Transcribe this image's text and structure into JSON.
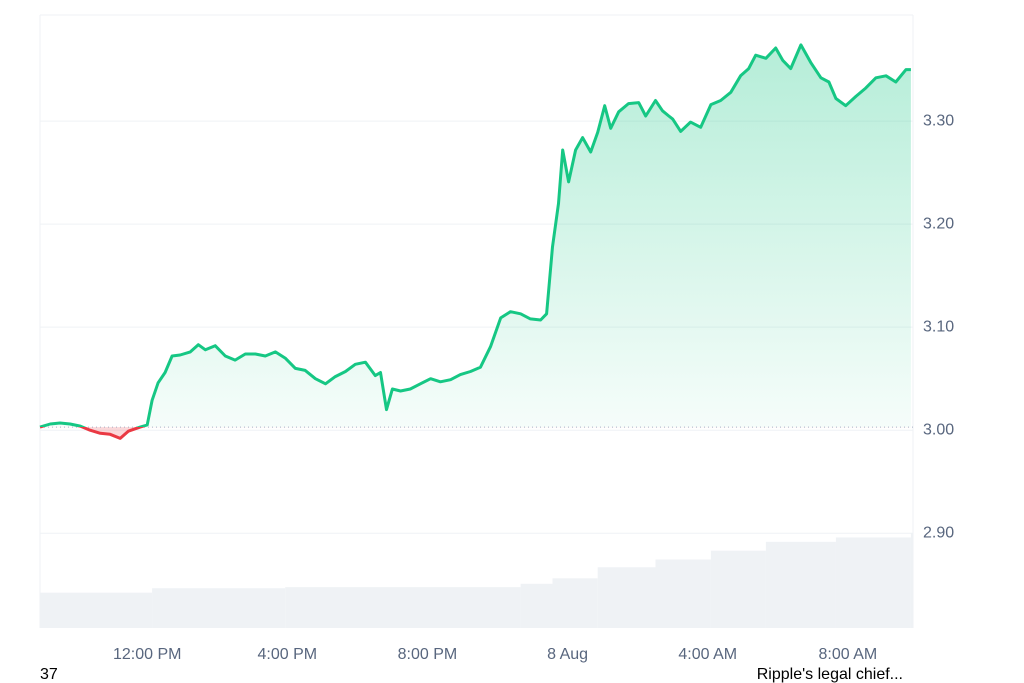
{
  "chart_data": {
    "type": "line",
    "x": [
      8.94,
      9.23,
      9.51,
      9.8,
      10.09,
      10.37,
      10.66,
      10.94,
      11.23,
      11.46,
      11.8,
      12.0,
      12.14,
      12.31,
      12.51,
      12.71,
      12.94,
      13.23,
      13.46,
      13.66,
      13.94,
      14.23,
      14.51,
      14.8,
      15.09,
      15.37,
      15.66,
      15.94,
      16.23,
      16.51,
      16.8,
      17.09,
      17.37,
      17.66,
      17.94,
      18.23,
      18.51,
      18.66,
      18.83,
      19.0,
      19.23,
      19.51,
      19.8,
      20.09,
      20.37,
      20.66,
      20.94,
      21.23,
      21.51,
      21.8,
      22.09,
      22.37,
      22.66,
      22.94,
      23.23,
      23.4,
      23.57,
      23.74,
      23.86,
      24.03,
      24.23,
      24.43,
      24.66,
      24.86,
      25.06,
      25.23,
      25.46,
      25.74,
      26.03,
      26.23,
      26.51,
      26.71,
      26.89,
      27.0,
      27.23,
      27.51,
      27.8,
      28.09,
      28.37,
      28.66,
      28.94,
      29.17,
      29.37,
      29.66,
      29.94,
      30.14,
      30.37,
      30.66,
      30.94,
      31.23,
      31.46,
      31.66,
      31.94,
      32.23,
      32.51,
      32.8,
      33.09,
      33.37,
      33.66,
      33.8
    ],
    "series": [
      {
        "color": "#16c784",
        "color_below": "#ea3943",
        "values": [
          3.003,
          3.006,
          3.007,
          3.006,
          3.004,
          3.0,
          2.997,
          2.996,
          2.992,
          2.999,
          3.003,
          3.005,
          3.029,
          3.046,
          3.056,
          3.072,
          3.073,
          3.076,
          3.083,
          3.078,
          3.082,
          3.072,
          3.068,
          3.074,
          3.074,
          3.072,
          3.076,
          3.07,
          3.06,
          3.058,
          3.05,
          3.045,
          3.052,
          3.057,
          3.064,
          3.066,
          3.053,
          3.056,
          3.02,
          3.04,
          3.038,
          3.04,
          3.045,
          3.05,
          3.047,
          3.049,
          3.054,
          3.057,
          3.061,
          3.081,
          3.109,
          3.115,
          3.113,
          3.108,
          3.107,
          3.113,
          3.178,
          3.22,
          3.272,
          3.241,
          3.272,
          3.284,
          3.27,
          3.289,
          3.315,
          3.293,
          3.309,
          3.317,
          3.318,
          3.305,
          3.32,
          3.31,
          3.305,
          3.302,
          3.29,
          3.299,
          3.294,
          3.316,
          3.32,
          3.328,
          3.344,
          3.351,
          3.364,
          3.361,
          3.371,
          3.359,
          3.351,
          3.374,
          3.357,
          3.342,
          3.338,
          3.322,
          3.315,
          3.324,
          3.332,
          3.342,
          3.344,
          3.338,
          3.35,
          3.35
        ]
      }
    ],
    "baseline": 3.003,
    "volume": {
      "color": "#eff2f5",
      "x": [
        8.94,
        12.14,
        15.94,
        22.66,
        23.57,
        24.86,
        26.51,
        28.09,
        29.66,
        31.66,
        33.8
      ],
      "values": [
        32,
        36,
        37,
        40,
        45,
        55,
        62,
        70,
        78,
        82,
        86
      ]
    },
    "xlim": [
      8.94,
      33.86
    ],
    "xticks": [
      {
        "value": 12,
        "label": "12:00 PM"
      },
      {
        "value": 16,
        "label": "4:00 PM"
      },
      {
        "value": 20,
        "label": "8:00 PM"
      },
      {
        "value": 24,
        "label": "8 Aug"
      },
      {
        "value": 28,
        "label": "4:00 AM"
      },
      {
        "value": 32,
        "label": "8:00 AM"
      }
    ],
    "ylim": [
      2.808,
      3.403
    ],
    "yticks": [
      {
        "value": 2.9,
        "label": "2.90"
      },
      {
        "value": 3.0,
        "label": "3.00"
      },
      {
        "value": 3.1,
        "label": "3.10"
      },
      {
        "value": 3.2,
        "label": "3.20"
      },
      {
        "value": 3.3,
        "label": "3.30"
      }
    ],
    "grid": true,
    "annotations": [
      "37",
      "Ripple's legal chief..."
    ]
  }
}
